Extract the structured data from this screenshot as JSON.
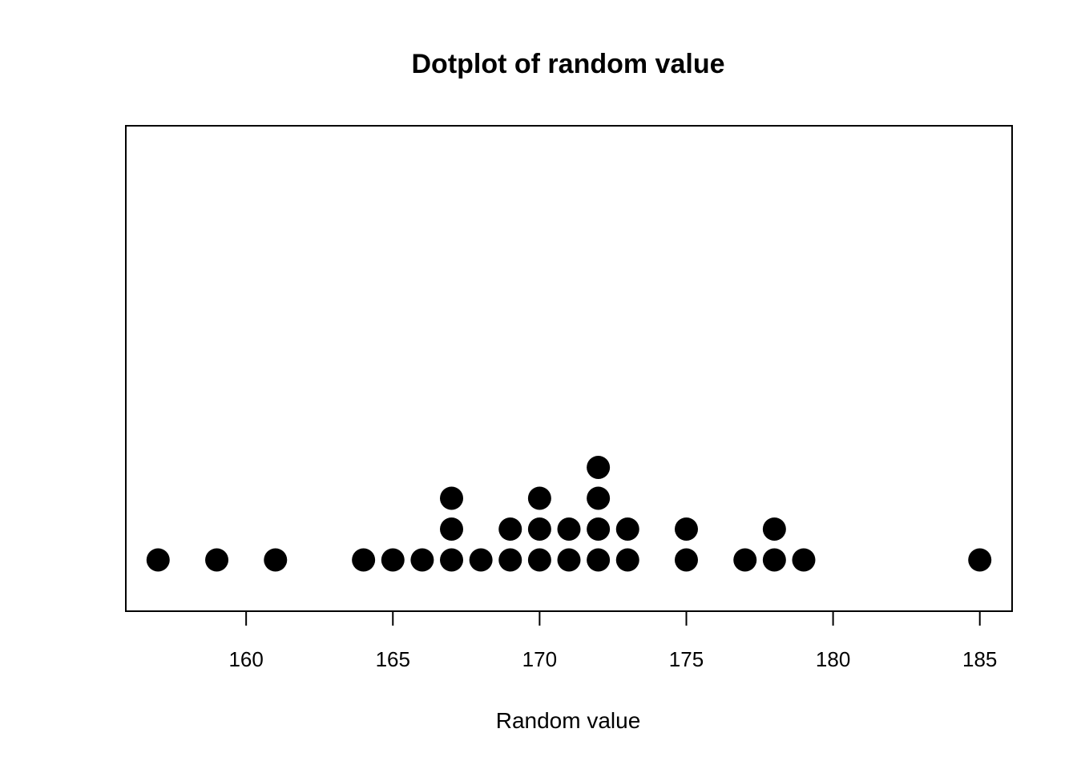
{
  "chart_data": {
    "type": "scatter",
    "subtype": "dotplot",
    "title": "Dotplot of random value",
    "xlabel": "Random value",
    "ylabel": "",
    "xlim": [
      155.9,
      186.1
    ],
    "x_ticks": [
      160,
      165,
      170,
      175,
      180,
      185
    ],
    "x_tick_labels": [
      "160",
      "165",
      "170",
      "175",
      "180",
      "185"
    ],
    "grid": false,
    "legend": "none",
    "colors": {
      "dot": "#000000",
      "frame": "#000000",
      "background": "#ffffff"
    },
    "values": [
      157,
      159,
      161,
      164,
      165,
      166,
      167,
      167,
      167,
      168,
      169,
      169,
      170,
      170,
      170,
      171,
      171,
      172,
      172,
      172,
      172,
      173,
      173,
      175,
      175,
      177,
      178,
      178,
      179,
      185
    ],
    "counts": [
      {
        "x": 157,
        "count": 1
      },
      {
        "x": 159,
        "count": 1
      },
      {
        "x": 161,
        "count": 1
      },
      {
        "x": 164,
        "count": 1
      },
      {
        "x": 165,
        "count": 1
      },
      {
        "x": 166,
        "count": 1
      },
      {
        "x": 167,
        "count": 3
      },
      {
        "x": 168,
        "count": 1
      },
      {
        "x": 169,
        "count": 2
      },
      {
        "x": 170,
        "count": 3
      },
      {
        "x": 171,
        "count": 2
      },
      {
        "x": 172,
        "count": 4
      },
      {
        "x": 173,
        "count": 2
      },
      {
        "x": 175,
        "count": 2
      },
      {
        "x": 177,
        "count": 1
      },
      {
        "x": 178,
        "count": 2
      },
      {
        "x": 179,
        "count": 1
      },
      {
        "x": 185,
        "count": 1
      }
    ]
  }
}
